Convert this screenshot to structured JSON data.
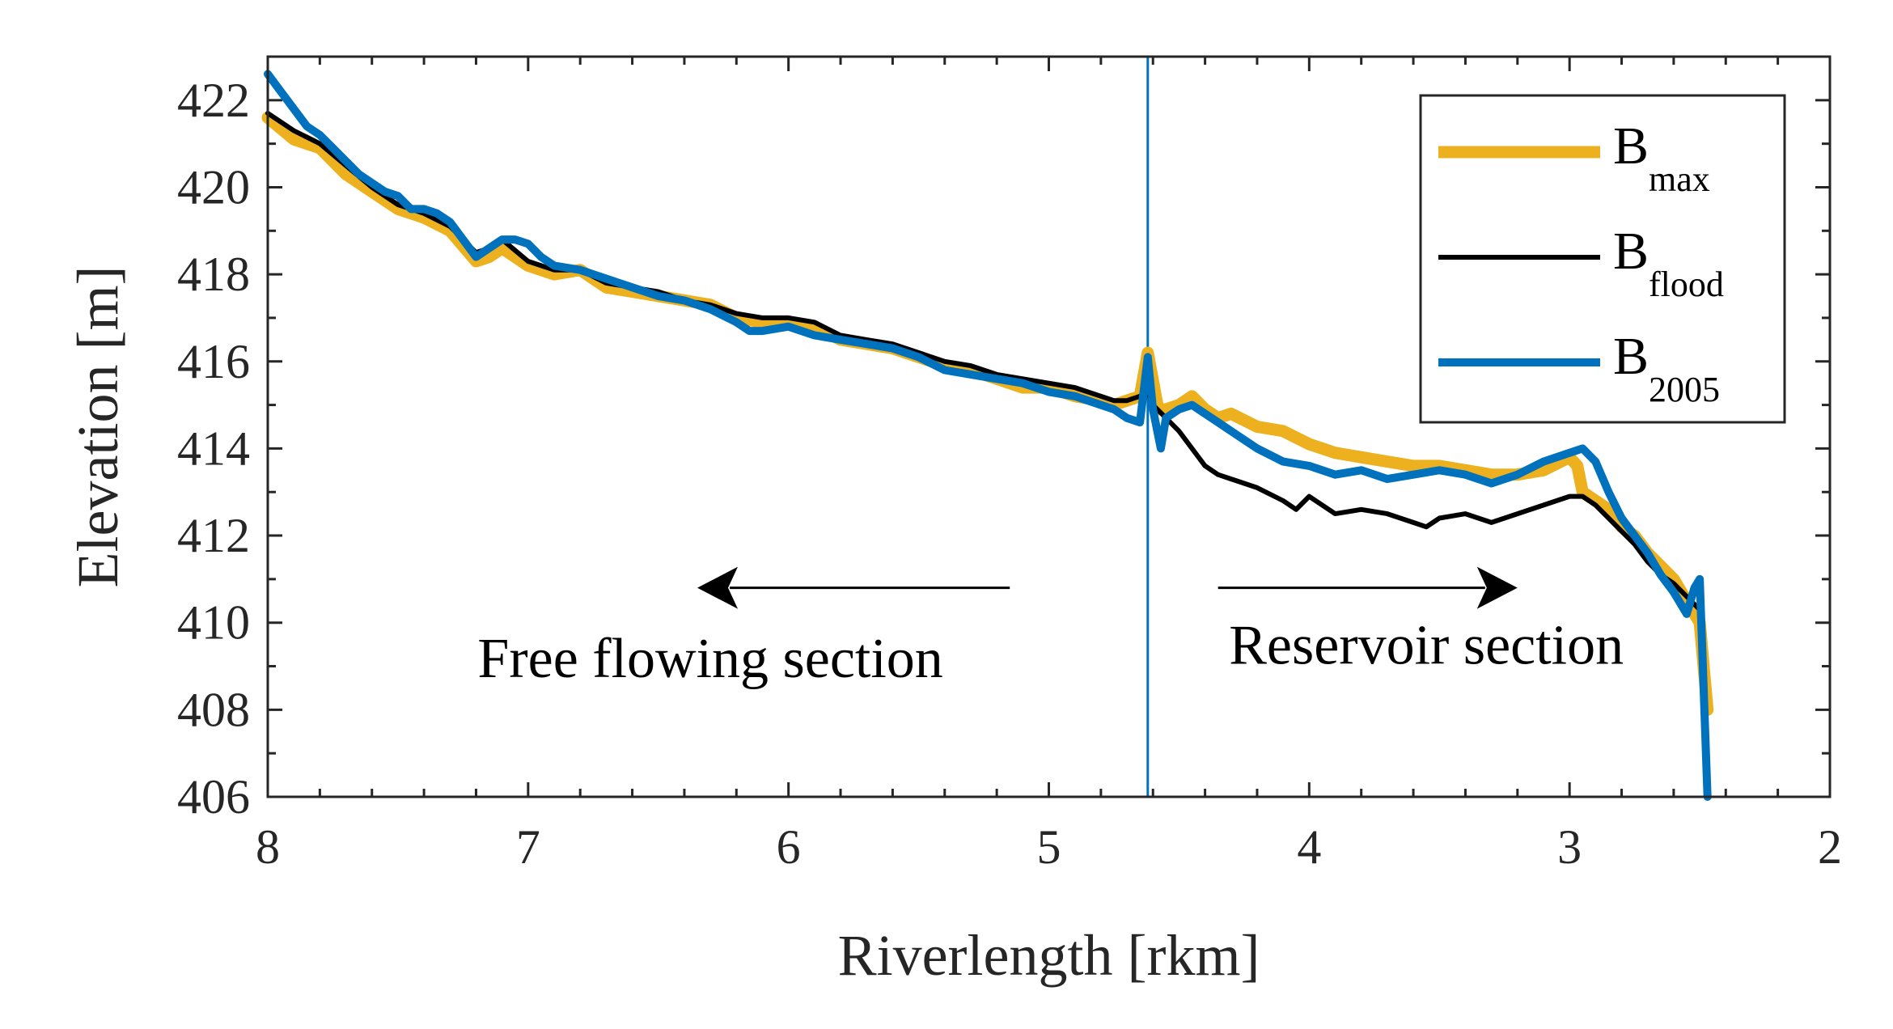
{
  "chart_data": {
    "type": "line",
    "title": "",
    "xlabel": "Riverlength [rkm]",
    "ylabel": "Elevation [m]",
    "xlim": [
      8,
      2
    ],
    "ylim": [
      406,
      423
    ],
    "x_ticks": [
      8,
      7,
      6,
      5,
      4,
      3,
      2
    ],
    "y_ticks": [
      406,
      408,
      410,
      412,
      414,
      416,
      418,
      420,
      422
    ],
    "x_tick_labels": [
      "8",
      "7",
      "6",
      "5",
      "4",
      "3",
      "2"
    ],
    "y_tick_labels": [
      "406",
      "408",
      "410",
      "412",
      "414",
      "416",
      "418",
      "420",
      "422"
    ],
    "divider_x": 4.62,
    "annotations": [
      {
        "text": "Free flowing section",
        "x": 6.3,
        "y": 409.2,
        "arrow_from": 5.15,
        "arrow_to": 6.35,
        "arrow_y": 410.8
      },
      {
        "text": "Reservoir section",
        "x": 3.55,
        "y": 409.5,
        "arrow_from": 4.35,
        "arrow_to": 3.2,
        "arrow_y": 410.8
      }
    ],
    "legend": {
      "location": "top-right",
      "entries": [
        {
          "base": "B",
          "sub": "max",
          "color": "#EDB120"
        },
        {
          "base": "B",
          "sub": "flood",
          "color": "#000000"
        },
        {
          "base": "B",
          "sub": "2005",
          "color": "#0072BD"
        }
      ]
    },
    "series": [
      {
        "name": "Bmax",
        "color": "#EDB120",
        "x": [
          8.0,
          7.9,
          7.8,
          7.7,
          7.6,
          7.5,
          7.4,
          7.3,
          7.2,
          7.15,
          7.1,
          7.0,
          6.9,
          6.8,
          6.7,
          6.6,
          6.5,
          6.4,
          6.3,
          6.2,
          6.1,
          6.0,
          5.9,
          5.8,
          5.7,
          5.6,
          5.5,
          5.4,
          5.3,
          5.2,
          5.1,
          5.0,
          4.9,
          4.8,
          4.75,
          4.7,
          4.65,
          4.62,
          4.58,
          4.55,
          4.5,
          4.45,
          4.4,
          4.35,
          4.3,
          4.2,
          4.1,
          4.0,
          3.9,
          3.8,
          3.7,
          3.6,
          3.5,
          3.4,
          3.3,
          3.2,
          3.1,
          3.0,
          2.97,
          2.95,
          2.9,
          2.85,
          2.8,
          2.75,
          2.7,
          2.65,
          2.6,
          2.55,
          2.5,
          2.47
        ],
        "y": [
          421.6,
          421.1,
          420.9,
          420.3,
          419.9,
          419.5,
          419.3,
          419.0,
          418.3,
          418.4,
          418.6,
          418.2,
          418.0,
          418.1,
          417.7,
          417.6,
          417.5,
          417.4,
          417.3,
          417.0,
          416.9,
          416.9,
          416.8,
          416.5,
          416.4,
          416.3,
          416.1,
          415.9,
          415.8,
          415.6,
          415.4,
          415.4,
          415.2,
          415.1,
          415.0,
          415.1,
          415.2,
          416.2,
          414.9,
          414.9,
          415.0,
          415.2,
          414.9,
          414.7,
          414.8,
          414.5,
          414.4,
          414.1,
          413.9,
          413.8,
          413.7,
          413.6,
          413.6,
          413.5,
          413.4,
          413.4,
          413.5,
          413.8,
          413.6,
          413.0,
          412.8,
          412.6,
          412.2,
          412.0,
          411.6,
          411.3,
          411.0,
          410.5,
          410.0,
          408.0
        ]
      },
      {
        "name": "Bflood",
        "color": "#000000",
        "x": [
          8.0,
          7.9,
          7.8,
          7.7,
          7.6,
          7.5,
          7.4,
          7.3,
          7.2,
          7.15,
          7.1,
          7.0,
          6.9,
          6.8,
          6.7,
          6.6,
          6.5,
          6.4,
          6.3,
          6.2,
          6.1,
          6.0,
          5.9,
          5.8,
          5.7,
          5.6,
          5.5,
          5.4,
          5.3,
          5.2,
          5.1,
          5.0,
          4.9,
          4.8,
          4.75,
          4.7,
          4.65,
          4.62,
          4.6,
          4.55,
          4.5,
          4.45,
          4.4,
          4.35,
          4.3,
          4.2,
          4.1,
          4.05,
          4.0,
          3.95,
          3.9,
          3.8,
          3.7,
          3.6,
          3.55,
          3.5,
          3.4,
          3.3,
          3.2,
          3.1,
          3.0,
          2.95,
          2.9,
          2.85,
          2.8,
          2.75,
          2.7,
          2.65,
          2.6,
          2.55,
          2.5
        ],
        "y": [
          421.7,
          421.3,
          421.0,
          420.5,
          420.0,
          419.6,
          419.4,
          419.1,
          418.5,
          418.6,
          418.8,
          418.3,
          418.1,
          418.1,
          417.8,
          417.7,
          417.6,
          417.4,
          417.3,
          417.1,
          417.0,
          417.0,
          416.9,
          416.6,
          416.5,
          416.4,
          416.2,
          416.0,
          415.9,
          415.7,
          415.6,
          415.5,
          415.4,
          415.2,
          415.1,
          415.1,
          415.2,
          415.3,
          415.0,
          414.7,
          414.4,
          414.0,
          413.6,
          413.4,
          413.3,
          413.1,
          412.8,
          412.6,
          412.9,
          412.7,
          412.5,
          412.6,
          412.5,
          412.3,
          412.2,
          412.4,
          412.5,
          412.3,
          412.5,
          412.7,
          412.9,
          412.9,
          412.7,
          412.4,
          412.1,
          411.8,
          411.4,
          411.1,
          410.9,
          410.6,
          410.3
        ]
      },
      {
        "name": "B2005",
        "color": "#0072BD",
        "x": [
          8.0,
          7.95,
          7.9,
          7.85,
          7.8,
          7.75,
          7.7,
          7.65,
          7.6,
          7.55,
          7.5,
          7.45,
          7.4,
          7.35,
          7.3,
          7.25,
          7.2,
          7.15,
          7.1,
          7.05,
          7.0,
          6.95,
          6.9,
          6.8,
          6.7,
          6.6,
          6.5,
          6.4,
          6.3,
          6.2,
          6.15,
          6.1,
          6.0,
          5.9,
          5.8,
          5.7,
          5.6,
          5.5,
          5.4,
          5.3,
          5.2,
          5.1,
          5.0,
          4.9,
          4.8,
          4.75,
          4.7,
          4.65,
          4.62,
          4.6,
          4.57,
          4.55,
          4.5,
          4.45,
          4.4,
          4.35,
          4.3,
          4.2,
          4.1,
          4.0,
          3.9,
          3.8,
          3.7,
          3.6,
          3.5,
          3.4,
          3.3,
          3.2,
          3.1,
          3.0,
          2.95,
          2.9,
          2.85,
          2.8,
          2.75,
          2.7,
          2.65,
          2.6,
          2.55,
          2.52,
          2.5,
          2.47
        ],
        "y": [
          422.6,
          422.2,
          421.8,
          421.4,
          421.2,
          420.9,
          420.6,
          420.3,
          420.1,
          419.9,
          419.8,
          419.5,
          419.5,
          419.4,
          419.2,
          418.8,
          418.4,
          418.6,
          418.8,
          418.8,
          418.7,
          418.4,
          418.2,
          418.1,
          417.9,
          417.7,
          417.5,
          417.4,
          417.2,
          416.9,
          416.7,
          416.7,
          416.8,
          416.6,
          416.5,
          416.4,
          416.3,
          416.1,
          415.8,
          415.7,
          415.6,
          415.5,
          415.3,
          415.2,
          415.0,
          414.9,
          414.7,
          414.6,
          416.1,
          414.9,
          414.0,
          414.7,
          414.9,
          415.0,
          414.8,
          414.6,
          414.4,
          414.0,
          413.7,
          413.6,
          413.4,
          413.5,
          413.3,
          413.4,
          413.5,
          413.4,
          413.2,
          413.4,
          413.7,
          413.9,
          414.0,
          413.7,
          413.0,
          412.4,
          412.0,
          411.6,
          411.1,
          410.7,
          410.2,
          410.8,
          411.0,
          406.0
        ]
      }
    ]
  }
}
